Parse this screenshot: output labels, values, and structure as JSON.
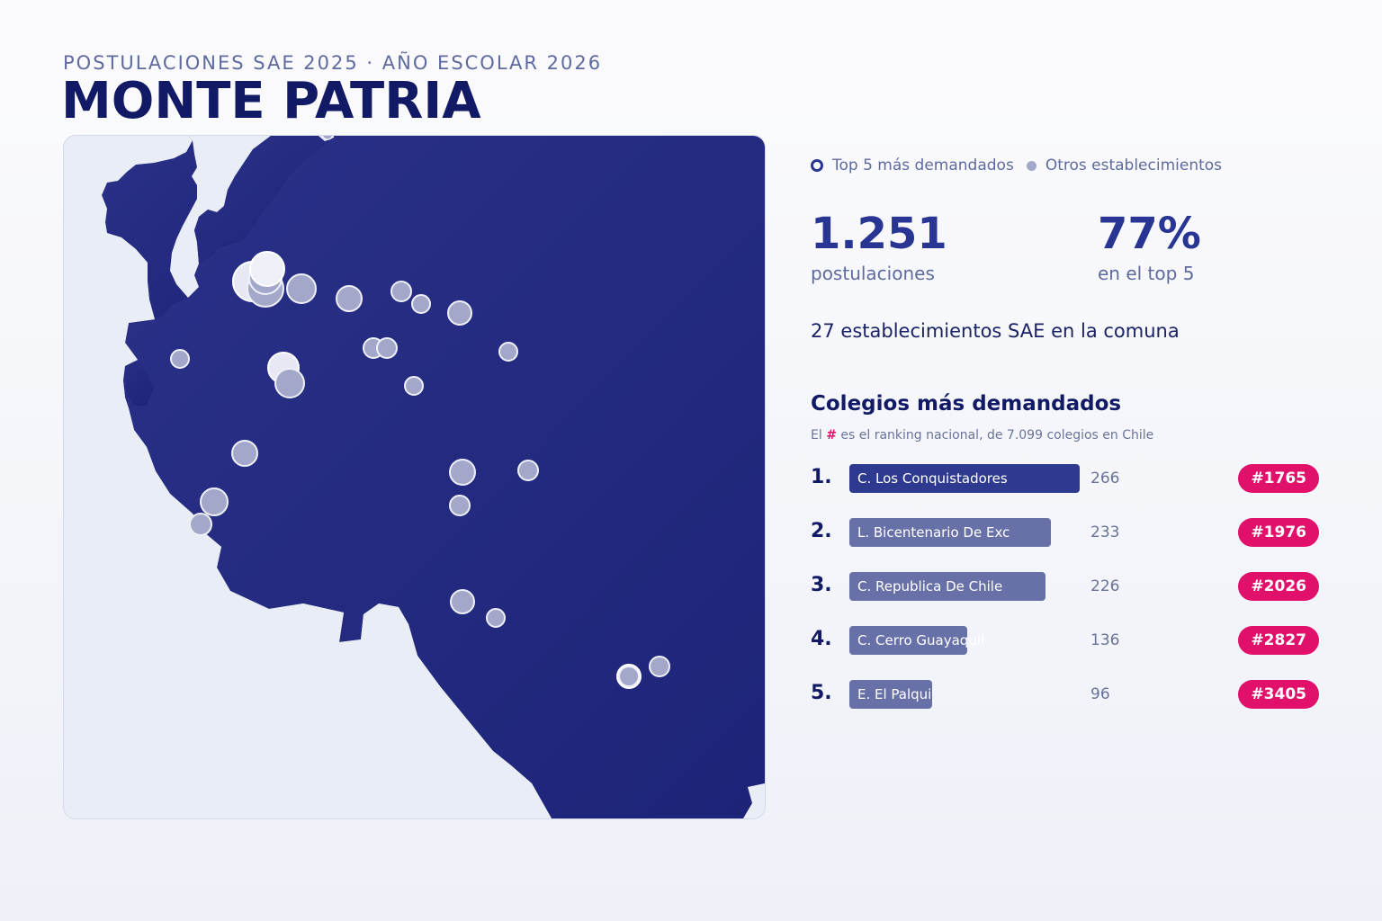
{
  "header": {
    "kicker": "POSTULACIONES SAE 2025 · AÑO ESCOLAR 2026",
    "title": "MONTE PATRIA"
  },
  "legend": {
    "top5": "Top 5 más demandados",
    "others": "Otros establecimientos"
  },
  "stats": {
    "applications_value": "1.251",
    "applications_label": "postulaciones",
    "top5_share_value": "77%",
    "top5_share_label": "en el top 5",
    "schools_text": "27 establecimientos SAE en la comuna"
  },
  "ranking": {
    "title": "Colegios más demandados",
    "note_prefix": "El",
    "note_hash": "#",
    "note_suffix": "es el ranking nacional, de 7.099 colegios en Chile",
    "max_count": 266,
    "items": [
      {
        "rank": "1.",
        "name": "C. Los Conquistadores",
        "count": 266,
        "national_rank": "#1765"
      },
      {
        "rank": "2.",
        "name": "L. Bicentenario De Exc",
        "count": 233,
        "national_rank": "#1976"
      },
      {
        "rank": "3.",
        "name": "C. Republica De Chile",
        "count": 226,
        "national_rank": "#2026"
      },
      {
        "rank": "4.",
        "name": "C. Cerro Guayaquil",
        "count": 136,
        "national_rank": "#2827"
      },
      {
        "rank": "5.",
        "name": "E. El Palqui",
        "count": 96,
        "national_rank": "#3405"
      }
    ]
  },
  "colors": {
    "region_fill": "#222a80",
    "top_bar": "#2e3a8f",
    "other_bar": "#6771a8",
    "badge": "#e0106b",
    "point_fill": "#a3a8cb",
    "point_highlight": "#eef0f8"
  }
}
